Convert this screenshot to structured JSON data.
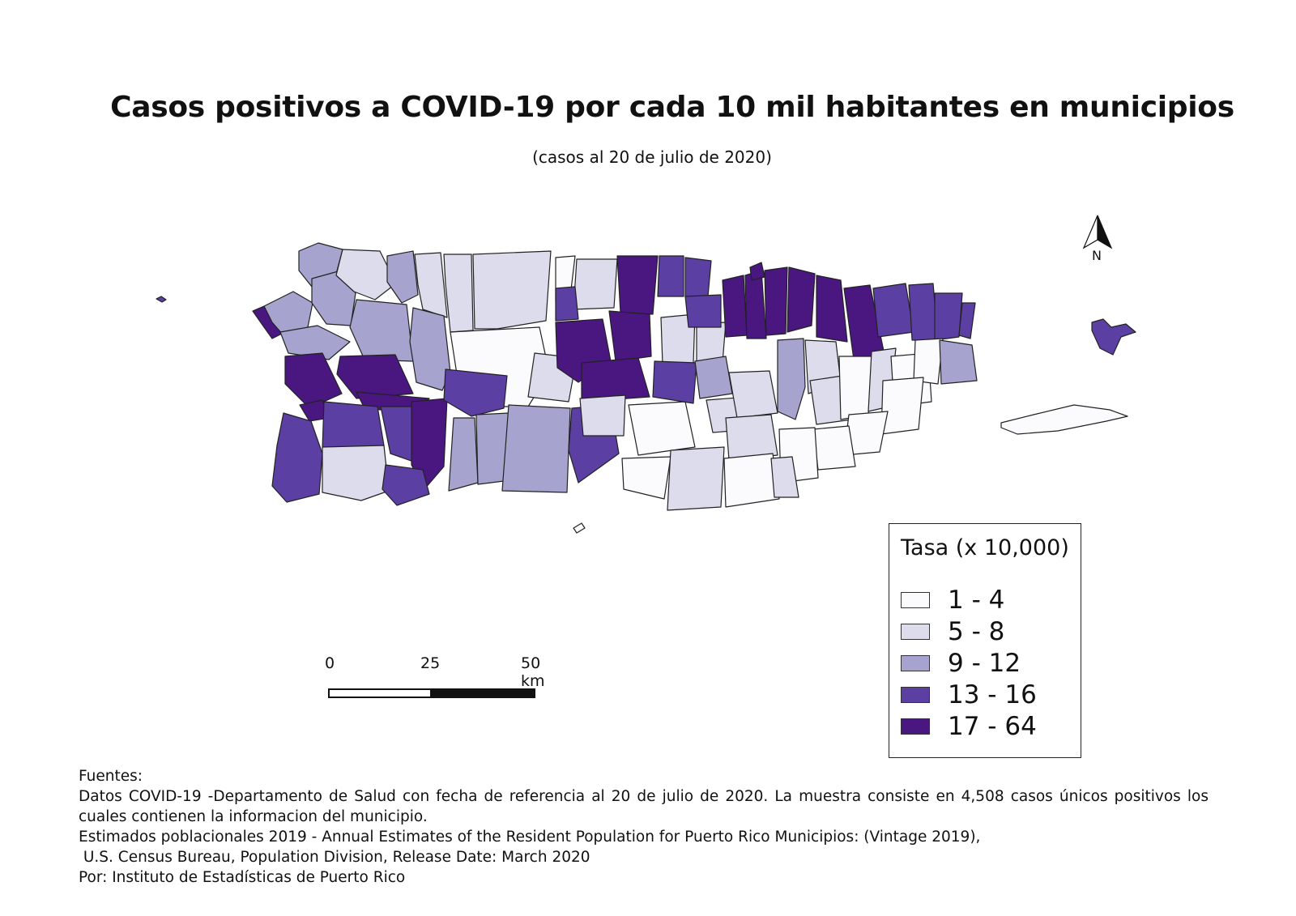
{
  "title": "Casos positivos a COVID-19 por cada 10 mil habitantes en municipios",
  "subtitle": "(casos al 20 de julio de 2020)",
  "north_arrow": {
    "label": "N"
  },
  "legend": {
    "title": "Tasa (x 10,000)",
    "items": [
      {
        "label": "1 - 4",
        "color": "#fbfbfe"
      },
      {
        "label": "5 - 8",
        "color": "#dcdcec"
      },
      {
        "label": "9 - 12",
        "color": "#a6a4cf"
      },
      {
        "label": "13 - 16",
        "color": "#5c3fa3"
      },
      {
        "label": "17 - 64",
        "color": "#4a1680"
      }
    ]
  },
  "scale_bar": {
    "labels": [
      "0",
      "25",
      "50 km"
    ]
  },
  "sources": {
    "heading": "Fuentes:",
    "line1": "Datos COVID-19 -Departamento de Salud con fecha de referencia al 20 de julio de 2020. La muestra consiste en 4,508 casos únicos positivos los cuales contienen la informacion del municipio.",
    "line2": "Estimados poblacionales 2019 - Annual Estimates of the Resident Population for Puerto Rico Municipios: (Vintage 2019),",
    "line3": " U.S. Census Bureau, Population Division, Release Date: March 2020",
    "line4": "Por: Instituto de Estadísticas de Puerto Rico"
  }
}
